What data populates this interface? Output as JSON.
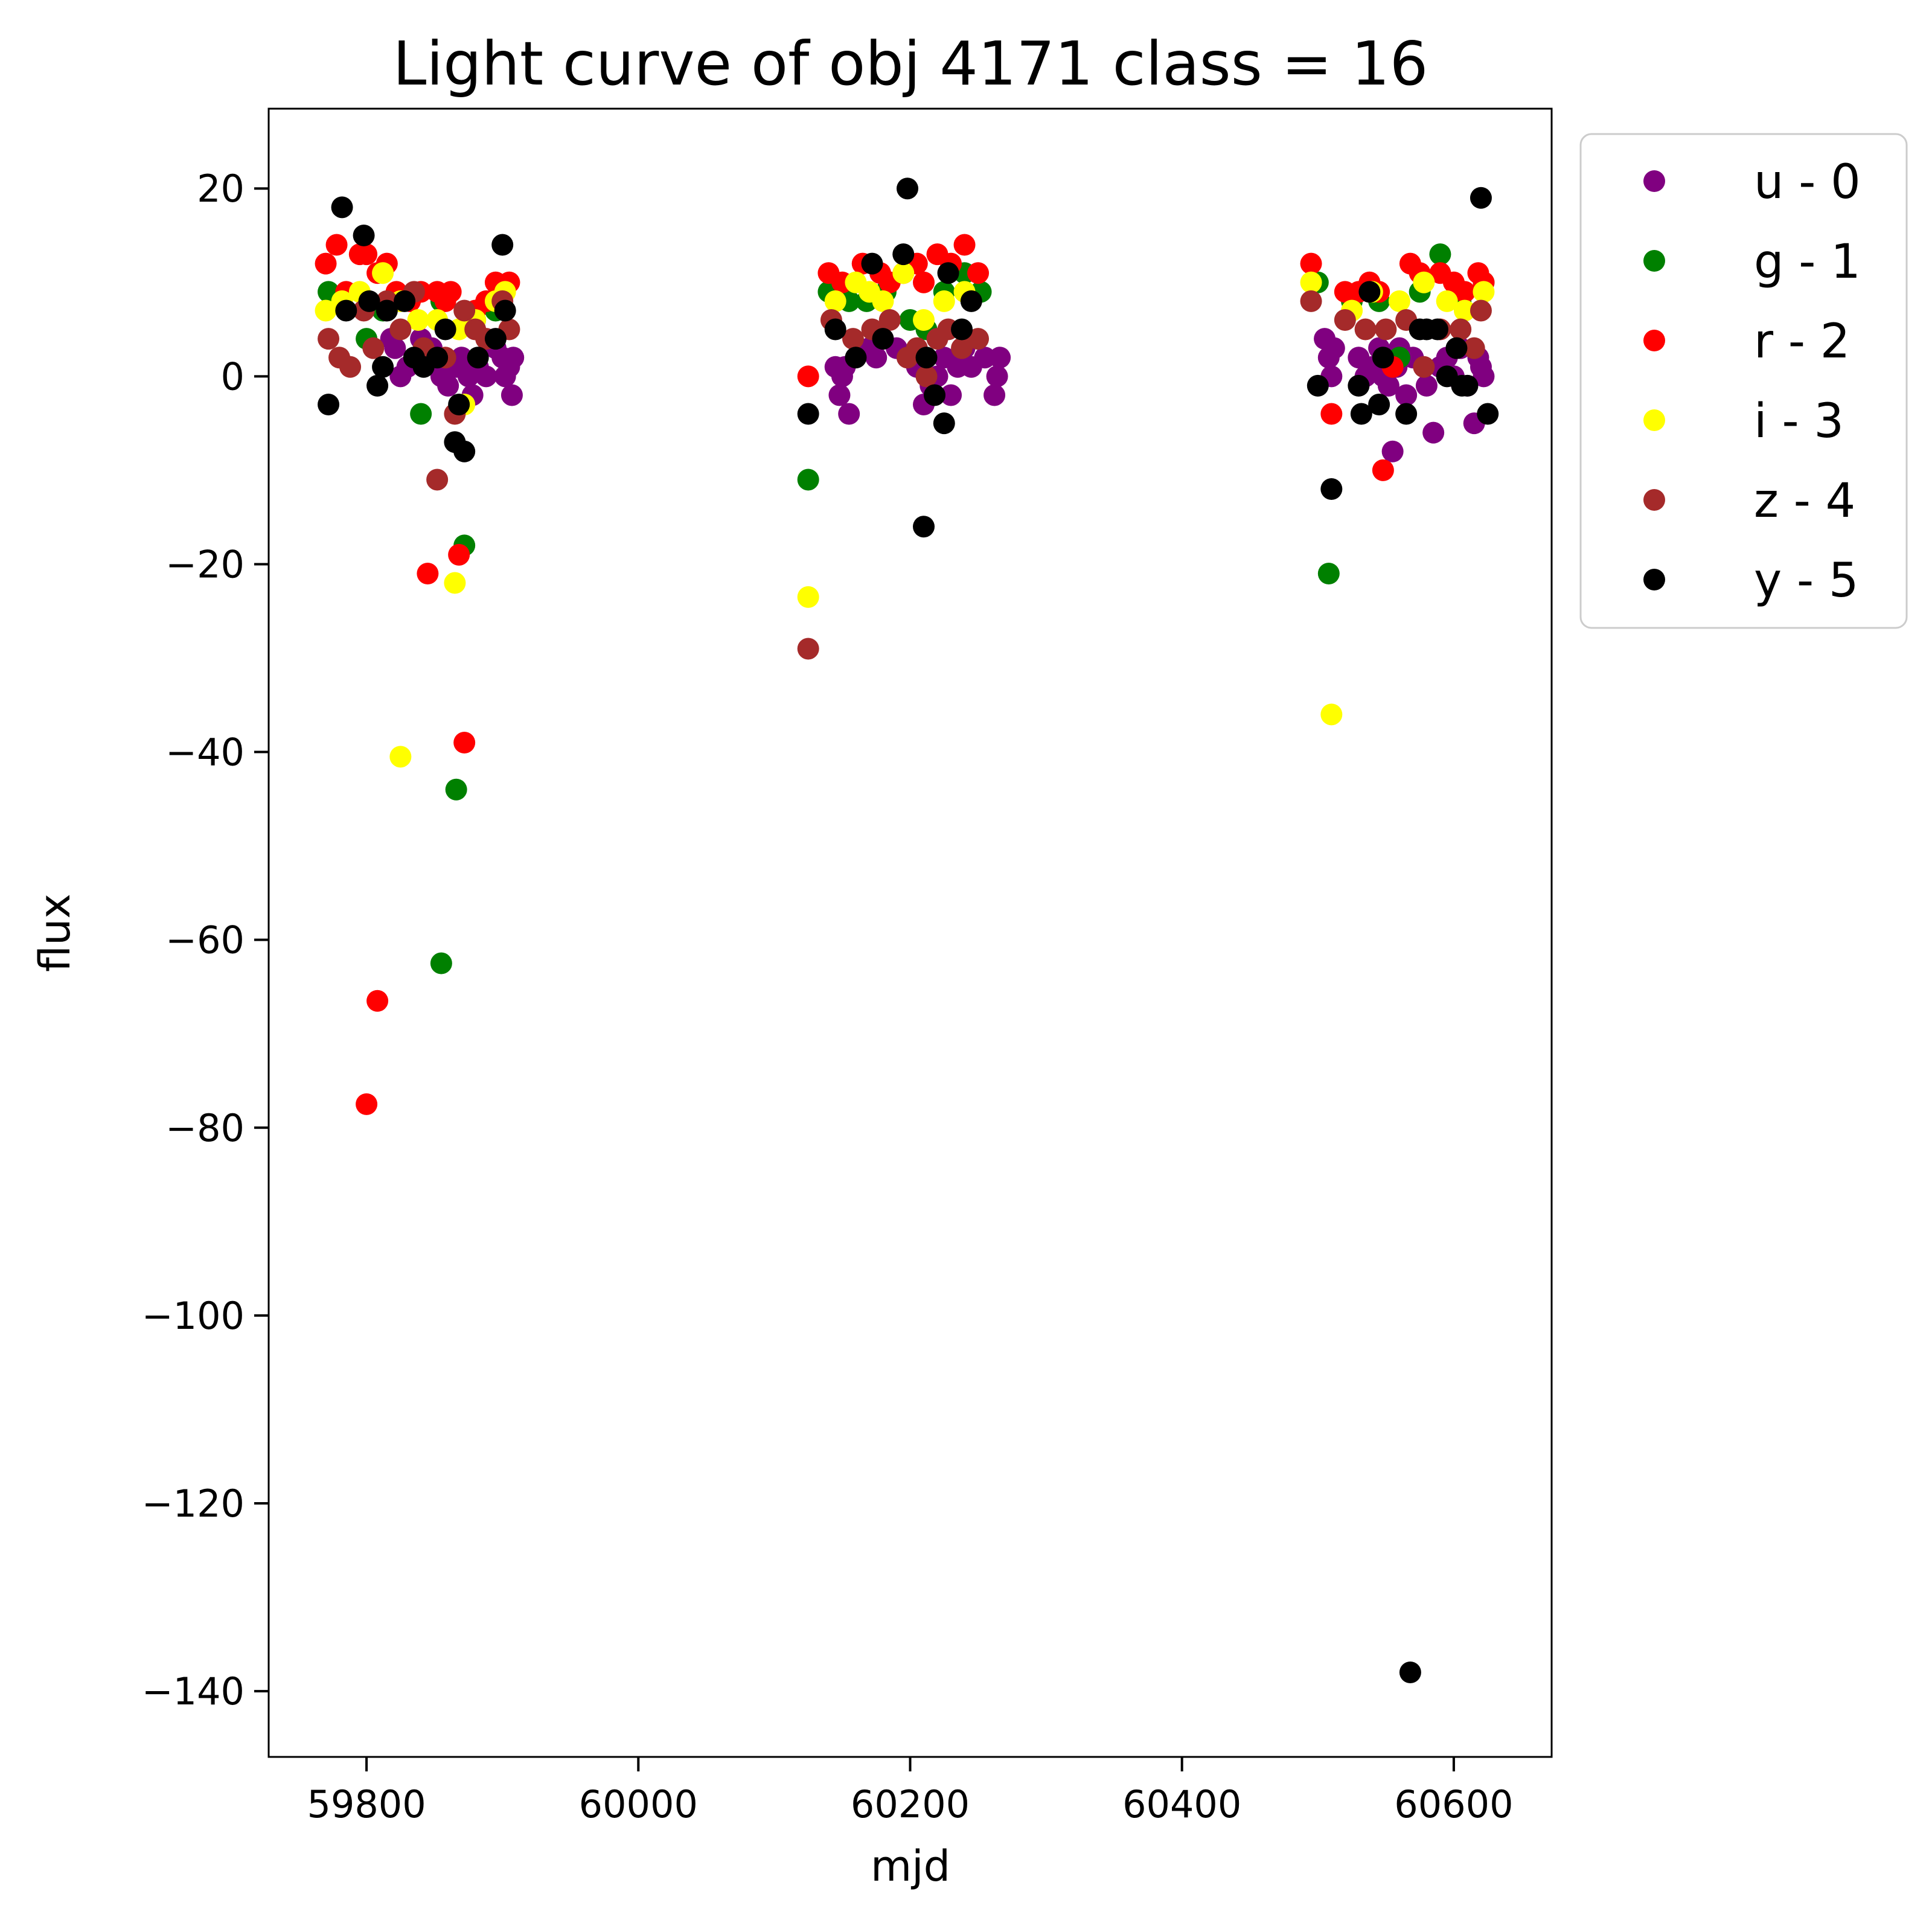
{
  "chart_data": {
    "type": "scatter",
    "title": "Light curve of obj 4171 class = 16",
    "xlabel": "mjd",
    "ylabel": "flux",
    "xlim": [
      59728,
      60672
    ],
    "ylim": [
      -147,
      28.5
    ],
    "xticks": [
      59800,
      60000,
      60200,
      60400,
      60600
    ],
    "xtick_labels": [
      "59800",
      "60000",
      "60200",
      "60400",
      "60600"
    ],
    "yticks": [
      20,
      0,
      -20,
      -40,
      -60,
      -80,
      -100,
      -120,
      -140
    ],
    "ytick_labels": [
      "20",
      "0",
      "−20",
      "−40",
      "−60",
      "−80",
      "−100",
      "−120",
      "−140"
    ],
    "grid": false,
    "legend_position": "outside-top-right",
    "series": [
      {
        "name": "u - 0",
        "color": "#800080",
        "x": [
          59818,
          59821,
          59825,
          59830,
          59835,
          59840,
          59848,
          59855,
          59860,
          59866,
          59870,
          59875,
          59878,
          59882,
          59888,
          59895,
          59900,
          59902,
          59905,
          59907,
          59908,
          60145,
          60148,
          60150,
          60152,
          60155,
          60170,
          60175,
          60180,
          60190,
          60198,
          60205,
          60210,
          60215,
          60220,
          60225,
          60230,
          60235,
          60240,
          60245,
          60255,
          60262,
          60264,
          60266,
          60505,
          60508,
          60510,
          60512,
          60530,
          60535,
          60540,
          60545,
          60548,
          60552,
          60555,
          60558,
          60560,
          60565,
          60570,
          60580,
          60585,
          60590,
          60595,
          60600,
          60605,
          60610,
          60615,
          60618,
          60620,
          60622
        ],
        "y": [
          4,
          3,
          0,
          1,
          2,
          4,
          3,
          0,
          -1,
          1,
          2,
          0,
          -2,
          1,
          0,
          3,
          2,
          0,
          1,
          -2,
          2,
          1,
          -2,
          0,
          1,
          -4,
          3,
          2,
          4,
          3,
          2,
          1,
          -3,
          -1,
          0,
          2,
          -2,
          1,
          3,
          1,
          2,
          -2,
          0,
          2,
          4,
          2,
          0,
          3,
          2,
          0,
          1,
          3,
          0,
          -1,
          -8,
          1,
          3,
          -2,
          2,
          -1,
          -6,
          1,
          2,
          0,
          3,
          -1,
          -5,
          2,
          1,
          0
        ]
      },
      {
        "name": "g - 1",
        "color": "#008000",
        "x": [
          59772,
          59800,
          59812,
          59840,
          59855,
          59866,
          59872,
          59880,
          59895,
          60125,
          60140,
          60155,
          60168,
          60182,
          60200,
          60212,
          60225,
          60240,
          60252,
          60500,
          60508,
          60525,
          60545,
          60560,
          60575,
          60590,
          60605,
          60622
        ],
        "y": [
          9,
          4,
          7,
          -4,
          8,
          -44,
          -18,
          6,
          7,
          -11,
          9,
          8,
          8,
          9,
          6,
          5,
          9,
          11,
          9,
          10,
          -21,
          8,
          8,
          2,
          9,
          13,
          8,
          10
        ],
        "outliers_y": [
          -62.5
        ]
      },
      {
        "name": "r - 2",
        "color": "#ff0000",
        "x": [
          59770,
          59778,
          59785,
          59795,
          59800,
          59808,
          59815,
          59822,
          59832,
          59840,
          59845,
          59852,
          59858,
          59862,
          59868,
          59872,
          59880,
          59888,
          59895,
          59900,
          59905,
          60125,
          60140,
          60150,
          60165,
          60178,
          60185,
          60195,
          60205,
          60210,
          60220,
          60230,
          60240,
          60250,
          60495,
          60510,
          60520,
          60530,
          60538,
          60545,
          60548,
          60555,
          60568,
          60575,
          60590,
          60600,
          60608,
          60618,
          60622
        ],
        "y": [
          12,
          14,
          9,
          13,
          13,
          11,
          12,
          9,
          8,
          9,
          -21,
          9,
          8,
          9,
          -19,
          -39,
          7,
          8,
          10,
          9,
          10,
          0,
          11,
          10,
          12,
          11,
          10,
          11,
          12,
          10,
          13,
          12,
          14,
          11,
          12,
          -4,
          9,
          9,
          10,
          9,
          -10,
          1,
          12,
          11,
          11,
          10,
          9,
          11,
          10
        ],
        "outliers_y": [
          -77.5,
          -66.5
        ]
      },
      {
        "name": "i - 3",
        "color": "#ffff00",
        "x": [
          59770,
          59782,
          59795,
          59812,
          59825,
          59838,
          59852,
          59865,
          59868,
          59872,
          59880,
          59895,
          59902,
          60125,
          60145,
          60160,
          60170,
          60180,
          60195,
          60210,
          60225,
          60240,
          60495,
          60510,
          60525,
          60540,
          60560,
          60578,
          60595,
          60608,
          60622
        ],
        "y": [
          7,
          8,
          9,
          11,
          8,
          6,
          6,
          -22,
          5,
          -3,
          6,
          8,
          9,
          -23.5,
          8,
          10,
          9,
          8,
          11,
          6,
          8,
          9,
          10,
          -36,
          7,
          9,
          8,
          10,
          8,
          7,
          9
        ],
        "outliers_y": [
          -40.5
        ]
      },
      {
        "name": "z - 4",
        "color": "#a52a2a",
        "x": [
          59772,
          59780,
          59788,
          59798,
          59805,
          59815,
          59825,
          59835,
          59842,
          59852,
          59858,
          59865,
          59872,
          59880,
          59888,
          59900,
          59905,
          60125,
          60142,
          60158,
          60172,
          60185,
          60198,
          60205,
          60212,
          60220,
          60228,
          60238,
          60250,
          60495,
          60520,
          60535,
          60550,
          60565,
          60578,
          60590,
          60605,
          60615,
          60620
        ],
        "y": [
          4,
          2,
          1,
          7,
          3,
          8,
          5,
          9,
          3,
          -11,
          2,
          -4,
          7,
          5,
          4,
          8,
          5,
          -29,
          6,
          4,
          5,
          6,
          2,
          3,
          0,
          4,
          5,
          3,
          4,
          8,
          6,
          5,
          5,
          6,
          1,
          5,
          5,
          3,
          7
        ]
      },
      {
        "name": "y - 5",
        "color": "#000000",
        "x": [
          59772,
          59782,
          59785,
          59798,
          59802,
          59808,
          59812,
          59815,
          59828,
          59835,
          59842,
          59852,
          59858,
          59865,
          59868,
          59872,
          59882,
          59895,
          59900,
          59902,
          60125,
          60145,
          60160,
          60172,
          60180,
          60195,
          60198,
          60210,
          60212,
          60218,
          60225,
          60228,
          60238,
          60245,
          60500,
          60510,
          60530,
          60532,
          60538,
          60545,
          60548,
          60565,
          60568,
          60575,
          60580,
          60588,
          60595,
          60602,
          60606,
          60610,
          60620,
          60625
        ],
        "y": [
          -3,
          18,
          7,
          15,
          8,
          -1,
          1,
          7,
          8,
          2,
          1,
          2,
          5,
          -7,
          -3,
          -8,
          2,
          4,
          14,
          7,
          -4,
          5,
          2,
          12,
          4,
          13,
          20,
          -16,
          2,
          -2,
          -5,
          11,
          5,
          8,
          -1,
          -12,
          -1,
          -4,
          9,
          -3,
          2,
          -4,
          -138,
          5,
          5,
          5,
          0,
          3,
          -1,
          -1,
          19,
          -4
        ],
        "outliers_y": []
      }
    ]
  }
}
